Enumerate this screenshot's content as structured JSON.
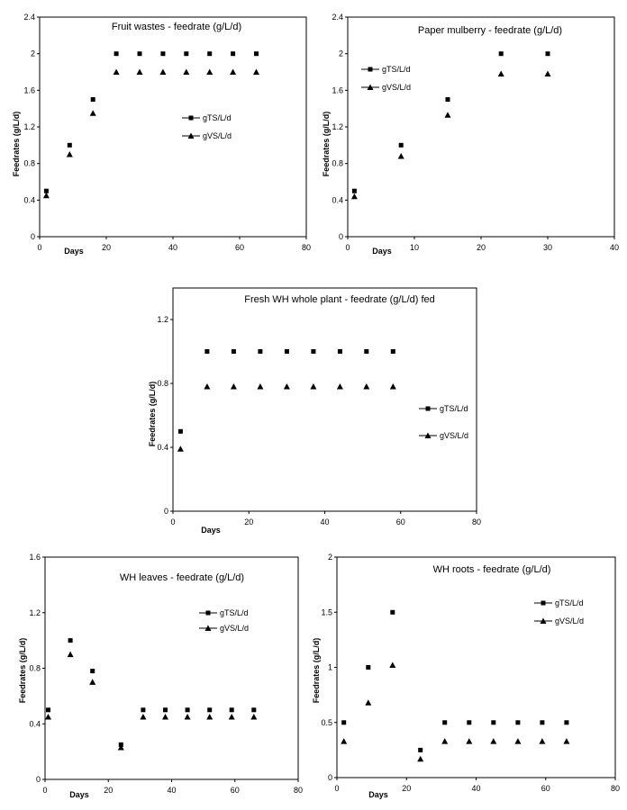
{
  "chart_data": [
    {
      "type": "scatter",
      "title": "Fruit wastes - feedrate (g/L/d)",
      "xlabel": "Days",
      "ylabel": "Feedrates (g/L/d)",
      "xlim": [
        0,
        80
      ],
      "ylim": [
        0,
        2.4
      ],
      "x_ticks": [
        "0",
        "20",
        "40",
        "60",
        "80"
      ],
      "y_ticks": [
        "0",
        "0.4",
        "0.8",
        "1.2",
        "1.6",
        "2",
        "2.4"
      ],
      "legend_position": "right-middle",
      "series": [
        {
          "name": "gTS/L/d",
          "marker": "square",
          "x": [
            2,
            9,
            16,
            23,
            30,
            37,
            44,
            51,
            58,
            65
          ],
          "y": [
            0.5,
            1.0,
            1.5,
            2.0,
            2.0,
            2.0,
            2.0,
            2.0,
            2.0,
            2.0
          ]
        },
        {
          "name": "gVS/L/d",
          "marker": "triangle",
          "x": [
            2,
            9,
            16,
            23,
            30,
            37,
            44,
            51,
            58,
            65
          ],
          "y": [
            0.45,
            0.9,
            1.35,
            1.8,
            1.8,
            1.8,
            1.8,
            1.8,
            1.8,
            1.8
          ]
        }
      ]
    },
    {
      "type": "scatter",
      "title": "Paper mulberry - feedrate (g/L/d)",
      "xlabel": "Days",
      "ylabel": "Feedrates (g/L/d)",
      "xlim": [
        0,
        40
      ],
      "ylim": [
        0,
        2.4
      ],
      "x_ticks": [
        "0",
        "10",
        "20",
        "30",
        "40"
      ],
      "y_ticks": [
        "0",
        "0.4",
        "0.8",
        "1.2",
        "1.6",
        "2",
        "2.4"
      ],
      "legend_position": "top-left",
      "series": [
        {
          "name": "gTS/L/d",
          "marker": "square",
          "x": [
            1,
            8,
            15,
            23,
            30
          ],
          "y": [
            0.5,
            1.0,
            1.5,
            2.0,
            2.0
          ]
        },
        {
          "name": "gVS/L/d",
          "marker": "triangle",
          "x": [
            1,
            8,
            15,
            23,
            30
          ],
          "y": [
            0.44,
            0.88,
            1.33,
            1.78,
            1.78
          ]
        }
      ]
    },
    {
      "type": "scatter",
      "title": "Fresh WH whole plant - feedrate (g/L/d) fed",
      "xlabel": "Days",
      "ylabel": "Feedrates (g/L/d)",
      "xlim": [
        0,
        80
      ],
      "ylim": [
        0,
        1.4
      ],
      "x_ticks": [
        "0",
        "20",
        "40",
        "60",
        "80"
      ],
      "y_ticks": [
        "0",
        "0.4",
        "0.8",
        "1.2"
      ],
      "legend_position": "right-outside",
      "series": [
        {
          "name": "gTS/L/d",
          "marker": "square",
          "x": [
            2,
            9,
            16,
            23,
            30,
            37,
            44,
            51,
            58
          ],
          "y": [
            0.5,
            1.0,
            1.0,
            1.0,
            1.0,
            1.0,
            1.0,
            1.0,
            1.0
          ]
        },
        {
          "name": "gVS/L/d",
          "marker": "triangle",
          "x": [
            2,
            9,
            16,
            23,
            30,
            37,
            44,
            51,
            58
          ],
          "y": [
            0.39,
            0.78,
            0.78,
            0.78,
            0.78,
            0.78,
            0.78,
            0.78,
            0.78
          ]
        }
      ]
    },
    {
      "type": "scatter",
      "title": "WH leaves - feedrate (g/L/d)",
      "xlabel": "Days",
      "ylabel": "Feedrates (g/L/d)",
      "xlim": [
        0,
        80
      ],
      "ylim": [
        0,
        1.6
      ],
      "x_ticks": [
        "0",
        "20",
        "40",
        "60",
        "80"
      ],
      "y_ticks": [
        "0",
        "0.4",
        "0.8",
        "1.2",
        "1.6"
      ],
      "legend_position": "top-right",
      "series": [
        {
          "name": "gTS/L/d",
          "marker": "square",
          "x": [
            1,
            8,
            15,
            24,
            31,
            38,
            45,
            52,
            59,
            66
          ],
          "y": [
            0.5,
            1.0,
            0.78,
            0.25,
            0.5,
            0.5,
            0.5,
            0.5,
            0.5,
            0.5
          ]
        },
        {
          "name": "gVS/L/d",
          "marker": "triangle",
          "x": [
            1,
            8,
            15,
            24,
            31,
            38,
            45,
            52,
            59,
            66
          ],
          "y": [
            0.45,
            0.9,
            0.7,
            0.23,
            0.45,
            0.45,
            0.45,
            0.45,
            0.45,
            0.45
          ]
        }
      ]
    },
    {
      "type": "scatter",
      "title": "WH roots - feedrate (g/L/d)",
      "xlabel": "Days",
      "ylabel": "Feedrates (g/L/d)",
      "xlim": [
        0,
        80
      ],
      "ylim": [
        0,
        2
      ],
      "x_ticks": [
        "0",
        "20",
        "40",
        "60",
        "80"
      ],
      "y_ticks": [
        "0",
        "0.5",
        "1",
        "1.5",
        "2"
      ],
      "legend_position": "top-right",
      "series": [
        {
          "name": "gTS/L/d",
          "marker": "square",
          "x": [
            2,
            9,
            16,
            24,
            31,
            38,
            45,
            52,
            59,
            66
          ],
          "y": [
            0.5,
            1.0,
            1.5,
            0.25,
            0.5,
            0.5,
            0.5,
            0.5,
            0.5,
            0.5
          ]
        },
        {
          "name": "gVS/L/d",
          "marker": "triangle",
          "x": [
            2,
            9,
            16,
            24,
            31,
            38,
            45,
            52,
            59,
            66
          ],
          "y": [
            0.33,
            0.68,
            1.02,
            0.17,
            0.33,
            0.33,
            0.33,
            0.33,
            0.33,
            0.33
          ]
        }
      ]
    }
  ]
}
